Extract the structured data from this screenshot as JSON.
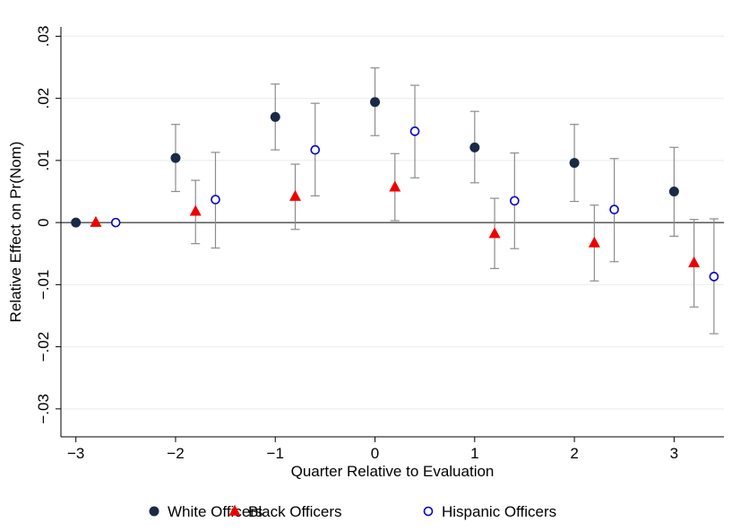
{
  "chart_data": {
    "type": "scatter",
    "xlabel": "Quarter Relative to Evaluation",
    "ylabel": "Relative Effect on Pr(Nom)",
    "xlim": [
      -3.15,
      3.5
    ],
    "ylim": [
      -0.0345,
      0.0315
    ],
    "x_ticks": [
      -3,
      -2,
      -1,
      0,
      1,
      2,
      3
    ],
    "x_tick_labels": [
      "−3",
      "−2",
      "−1",
      "0",
      "1",
      "2",
      "3"
    ],
    "y_ticks": [
      -0.03,
      -0.02,
      -0.01,
      0,
      0.01,
      0.02,
      0.03
    ],
    "y_tick_labels": [
      "−.03",
      "−.02",
      "−.01",
      "0",
      ".01",
      ".02",
      ".03"
    ],
    "grid": true,
    "legend_position": "bottom",
    "reference_line_y": 0,
    "series": [
      {
        "name": "White Officers",
        "marker": "filled-circle",
        "color": "#1a2a44",
        "x": [
          -3,
          -2,
          -1,
          0,
          1,
          2,
          3
        ],
        "y": [
          0,
          0.0104,
          0.017,
          0.0194,
          0.0121,
          0.0096,
          0.005
        ],
        "ci_low": [
          null,
          0.005,
          0.0117,
          0.014,
          0.0064,
          0.0034,
          -0.0022
        ],
        "ci_high": [
          null,
          0.0158,
          0.0223,
          0.0249,
          0.0179,
          0.0158,
          0.0121
        ]
      },
      {
        "name": "Black Officers",
        "marker": "filled-triangle",
        "color": "#ee0000",
        "x": [
          -2.8,
          -1.8,
          -0.8,
          0.2,
          1.2,
          2.2,
          3.2
        ],
        "y": [
          0,
          0.0018,
          0.0042,
          0.0057,
          -0.0018,
          -0.0033,
          -0.0065
        ],
        "ci_low": [
          null,
          -0.0034,
          -0.0011,
          0.0003,
          -0.0074,
          -0.0094,
          -0.0136
        ],
        "ci_high": [
          null,
          0.0068,
          0.0094,
          0.0111,
          0.0039,
          0.0028,
          0.0005
        ]
      },
      {
        "name": "Hispanic Officers",
        "marker": "hollow-circle",
        "color": "#0000cc",
        "x": [
          -2.6,
          -1.6,
          -0.6,
          0.4,
          1.4,
          2.4,
          3.4
        ],
        "y": [
          0,
          0.0037,
          0.0117,
          0.0147,
          0.0035,
          0.0021,
          -0.0087
        ],
        "ci_low": [
          null,
          -0.0041,
          0.0043,
          0.0072,
          -0.0042,
          -0.0063,
          -0.0179
        ],
        "ci_high": [
          null,
          0.0113,
          0.0192,
          0.0221,
          0.0112,
          0.0103,
          0.0006
        ]
      }
    ]
  }
}
